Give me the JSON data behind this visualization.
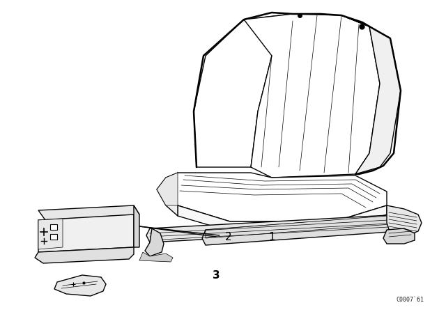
{
  "background_color": "#ffffff",
  "figure_width": 6.4,
  "figure_height": 4.48,
  "dpi": 100,
  "watermark_text": "C0007`61",
  "watermark_fontsize": 6,
  "label_1": "1",
  "label_2": "2",
  "label_3": "3",
  "line_color": "#000000",
  "lw_main": 1.0,
  "lw_thin": 0.5,
  "lw_thick": 1.8
}
